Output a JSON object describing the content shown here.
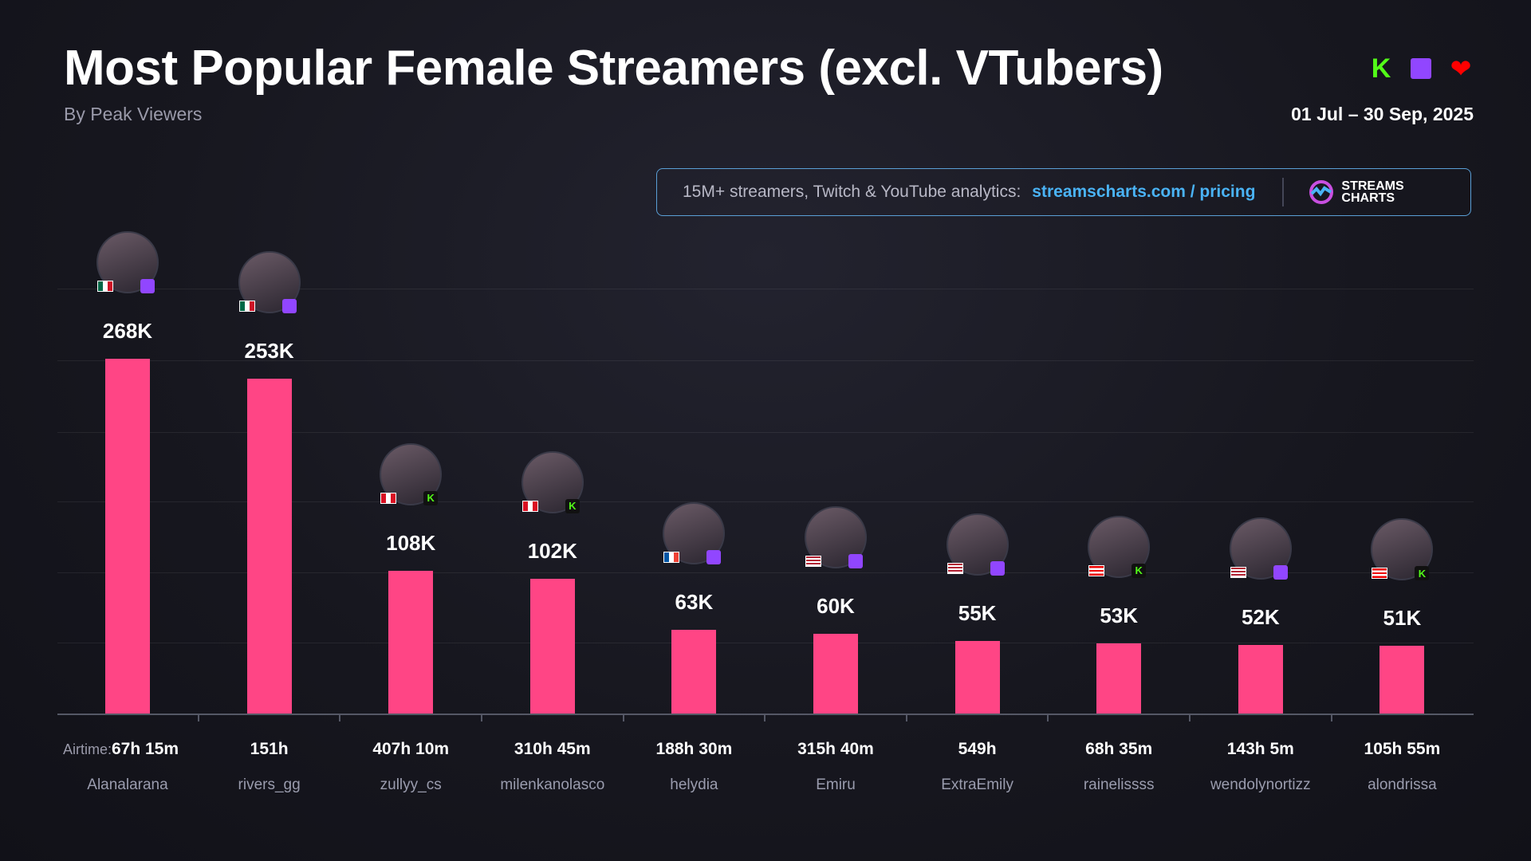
{
  "header": {
    "title": "Most Popular Female Streamers (excl. VTubers)",
    "subtitle": "By Peak Viewers",
    "date_range": "01 Jul – 30 Sep, 2025",
    "platform_icons": [
      "kick-icon",
      "twitch-icon",
      "youtube-icon"
    ]
  },
  "banner": {
    "text": "15M+ streamers, Twitch & YouTube analytics:",
    "link": "streamscharts.com / pricing",
    "logo_line1": "STREAMS",
    "logo_line2": "CHARTS"
  },
  "colors": {
    "bar": "#ff4585",
    "kick": "#53fc18",
    "twitch": "#9146ff",
    "youtube": "#ff0000",
    "link": "#4ab3f5"
  },
  "chart_data": {
    "type": "bar",
    "title": "Most Popular Female Streamers (excl. VTubers)",
    "ylabel": "Peak Viewers",
    "ylim": [
      0,
      268000
    ],
    "airtime_label": "Airtime:",
    "categories": [
      "Alanalarana",
      "rivers_gg",
      "zullyy_cs",
      "milenkanolasco",
      "helydia",
      "Emiru",
      "ExtraEmily",
      "rainelissss",
      "wendolynortizz",
      "alondrissa"
    ],
    "values": [
      268000,
      253000,
      108000,
      102000,
      63000,
      60000,
      55000,
      53000,
      52000,
      51000
    ],
    "value_labels": [
      "268K",
      "253K",
      "108K",
      "102K",
      "63K",
      "60K",
      "55K",
      "53K",
      "52K",
      "51K"
    ],
    "airtime": [
      "67h 15m",
      "151h",
      "407h 10m",
      "310h 45m",
      "188h 30m",
      "315h 40m",
      "549h",
      "68h 35m",
      "143h 5m",
      "105h 55m"
    ],
    "platform": [
      "twitch",
      "twitch",
      "kick",
      "kick",
      "twitch",
      "twitch",
      "twitch",
      "kick",
      "twitch",
      "kick"
    ],
    "country": [
      "MX",
      "MX",
      "PE",
      "PE",
      "FR",
      "US",
      "US",
      "PR",
      "US",
      "PR"
    ]
  }
}
